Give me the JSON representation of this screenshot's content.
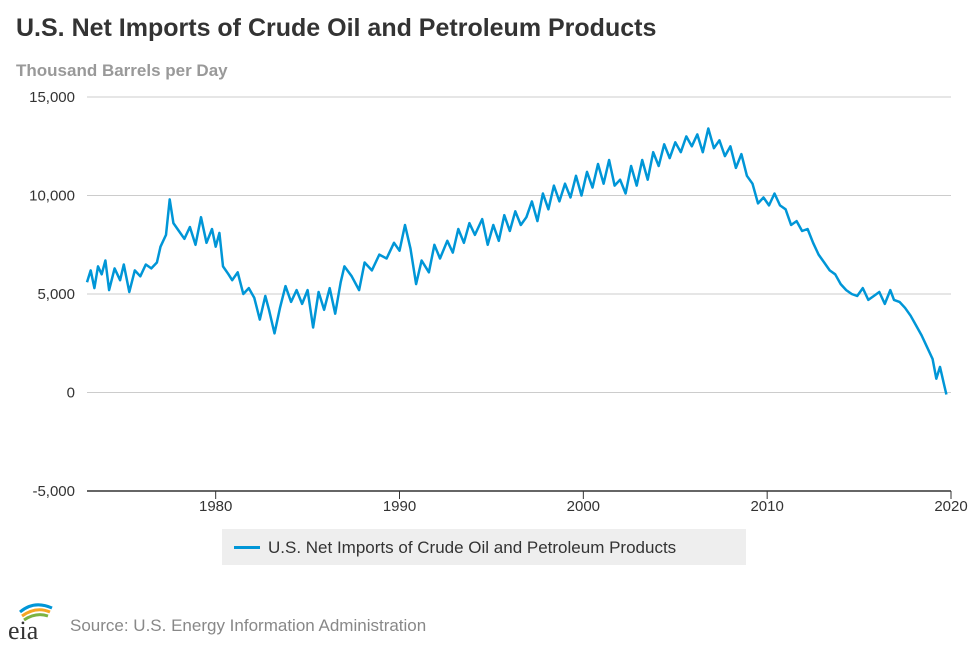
{
  "header": {
    "title": "U.S. Net Imports of Crude Oil and Petroleum Products",
    "subtitle": "Thousand Barrels per Day"
  },
  "legend": {
    "label": "U.S. Net Imports of Crude Oil and Petroleum Products"
  },
  "footer": {
    "source": "Source: U.S. Energy Information Administration",
    "logo_text": "eia"
  },
  "colors": {
    "series": "#0096d7",
    "grid": "#cccccc",
    "axis": "#333333",
    "text": "#333333"
  },
  "chart_data": {
    "type": "line",
    "title": "U.S. Net Imports of Crude Oil and Petroleum Products",
    "subtitle": "Thousand Barrels per Day",
    "xlabel": "",
    "ylabel": "",
    "xlim": [
      1973,
      2020
    ],
    "ylim": [
      -5000,
      15000
    ],
    "x_ticks": [
      1980,
      1990,
      2000,
      2010,
      2020
    ],
    "y_ticks": [
      -5000,
      0,
      5000,
      10000,
      15000
    ],
    "grid": "horizontal",
    "legend_position": "bottom",
    "series": [
      {
        "name": "U.S. Net Imports of Crude Oil and Petroleum Products",
        "color": "#0096d7",
        "points": [
          [
            1973.0,
            5600
          ],
          [
            1973.2,
            6200
          ],
          [
            1973.4,
            5300
          ],
          [
            1973.6,
            6400
          ],
          [
            1973.8,
            6000
          ],
          [
            1974.0,
            6700
          ],
          [
            1974.2,
            5200
          ],
          [
            1974.5,
            6300
          ],
          [
            1974.8,
            5700
          ],
          [
            1975.0,
            6500
          ],
          [
            1975.3,
            5100
          ],
          [
            1975.6,
            6200
          ],
          [
            1975.9,
            5900
          ],
          [
            1976.2,
            6500
          ],
          [
            1976.5,
            6300
          ],
          [
            1976.8,
            6600
          ],
          [
            1977.0,
            7400
          ],
          [
            1977.3,
            8000
          ],
          [
            1977.5,
            9800
          ],
          [
            1977.7,
            8600
          ],
          [
            1978.0,
            8200
          ],
          [
            1978.3,
            7800
          ],
          [
            1978.6,
            8400
          ],
          [
            1978.9,
            7500
          ],
          [
            1979.2,
            8900
          ],
          [
            1979.5,
            7600
          ],
          [
            1979.8,
            8300
          ],
          [
            1980.0,
            7400
          ],
          [
            1980.2,
            8100
          ],
          [
            1980.4,
            6400
          ],
          [
            1980.7,
            6000
          ],
          [
            1980.9,
            5700
          ],
          [
            1981.2,
            6100
          ],
          [
            1981.5,
            5000
          ],
          [
            1981.8,
            5300
          ],
          [
            1982.1,
            4800
          ],
          [
            1982.4,
            3700
          ],
          [
            1982.7,
            4900
          ],
          [
            1982.9,
            4200
          ],
          [
            1983.2,
            3000
          ],
          [
            1983.5,
            4300
          ],
          [
            1983.8,
            5400
          ],
          [
            1984.1,
            4600
          ],
          [
            1984.4,
            5200
          ],
          [
            1984.7,
            4500
          ],
          [
            1985.0,
            5200
          ],
          [
            1985.3,
            3300
          ],
          [
            1985.6,
            5100
          ],
          [
            1985.9,
            4200
          ],
          [
            1986.2,
            5300
          ],
          [
            1986.5,
            4000
          ],
          [
            1986.8,
            5600
          ],
          [
            1987.0,
            6400
          ],
          [
            1987.4,
            5900
          ],
          [
            1987.8,
            5200
          ],
          [
            1988.1,
            6600
          ],
          [
            1988.5,
            6200
          ],
          [
            1988.9,
            7000
          ],
          [
            1989.3,
            6800
          ],
          [
            1989.7,
            7600
          ],
          [
            1990.0,
            7200
          ],
          [
            1990.3,
            8500
          ],
          [
            1990.6,
            7300
          ],
          [
            1990.9,
            5500
          ],
          [
            1991.2,
            6700
          ],
          [
            1991.6,
            6100
          ],
          [
            1991.9,
            7500
          ],
          [
            1992.2,
            6800
          ],
          [
            1992.6,
            7700
          ],
          [
            1992.9,
            7100
          ],
          [
            1993.2,
            8300
          ],
          [
            1993.5,
            7600
          ],
          [
            1993.8,
            8600
          ],
          [
            1994.1,
            8000
          ],
          [
            1994.5,
            8800
          ],
          [
            1994.8,
            7500
          ],
          [
            1995.1,
            8500
          ],
          [
            1995.4,
            7700
          ],
          [
            1995.7,
            9000
          ],
          [
            1996.0,
            8200
          ],
          [
            1996.3,
            9200
          ],
          [
            1996.6,
            8500
          ],
          [
            1996.9,
            8900
          ],
          [
            1997.2,
            9700
          ],
          [
            1997.5,
            8700
          ],
          [
            1997.8,
            10100
          ],
          [
            1998.1,
            9300
          ],
          [
            1998.4,
            10500
          ],
          [
            1998.7,
            9700
          ],
          [
            1999.0,
            10600
          ],
          [
            1999.3,
            9900
          ],
          [
            1999.6,
            11000
          ],
          [
            1999.9,
            10000
          ],
          [
            2000.2,
            11200
          ],
          [
            2000.5,
            10400
          ],
          [
            2000.8,
            11600
          ],
          [
            2001.1,
            10600
          ],
          [
            2001.4,
            11800
          ],
          [
            2001.7,
            10500
          ],
          [
            2002.0,
            10800
          ],
          [
            2002.3,
            10100
          ],
          [
            2002.6,
            11500
          ],
          [
            2002.9,
            10500
          ],
          [
            2003.2,
            11800
          ],
          [
            2003.5,
            10800
          ],
          [
            2003.8,
            12200
          ],
          [
            2004.1,
            11500
          ],
          [
            2004.4,
            12600
          ],
          [
            2004.7,
            11900
          ],
          [
            2005.0,
            12700
          ],
          [
            2005.3,
            12200
          ],
          [
            2005.6,
            13000
          ],
          [
            2005.9,
            12500
          ],
          [
            2006.2,
            13100
          ],
          [
            2006.5,
            12200
          ],
          [
            2006.8,
            13400
          ],
          [
            2007.1,
            12400
          ],
          [
            2007.4,
            12800
          ],
          [
            2007.7,
            12000
          ],
          [
            2008.0,
            12500
          ],
          [
            2008.3,
            11400
          ],
          [
            2008.6,
            12100
          ],
          [
            2008.9,
            11000
          ],
          [
            2009.2,
            10600
          ],
          [
            2009.5,
            9600
          ],
          [
            2009.8,
            9900
          ],
          [
            2010.1,
            9500
          ],
          [
            2010.4,
            10100
          ],
          [
            2010.7,
            9500
          ],
          [
            2011.0,
            9300
          ],
          [
            2011.3,
            8500
          ],
          [
            2011.6,
            8700
          ],
          [
            2011.9,
            8200
          ],
          [
            2012.2,
            8300
          ],
          [
            2012.5,
            7600
          ],
          [
            2012.8,
            7000
          ],
          [
            2013.1,
            6600
          ],
          [
            2013.4,
            6200
          ],
          [
            2013.7,
            6000
          ],
          [
            2014.0,
            5500
          ],
          [
            2014.3,
            5200
          ],
          [
            2014.6,
            5000
          ],
          [
            2014.9,
            4900
          ],
          [
            2015.2,
            5300
          ],
          [
            2015.5,
            4700
          ],
          [
            2015.8,
            4900
          ],
          [
            2016.1,
            5100
          ],
          [
            2016.4,
            4500
          ],
          [
            2016.7,
            5200
          ],
          [
            2016.9,
            4700
          ],
          [
            2017.2,
            4600
          ],
          [
            2017.5,
            4300
          ],
          [
            2017.8,
            3900
          ],
          [
            2018.1,
            3400
          ],
          [
            2018.4,
            2900
          ],
          [
            2018.7,
            2300
          ],
          [
            2019.0,
            1700
          ],
          [
            2019.2,
            700
          ],
          [
            2019.4,
            1300
          ],
          [
            2019.6,
            500
          ],
          [
            2019.75,
            -100
          ]
        ]
      }
    ]
  }
}
